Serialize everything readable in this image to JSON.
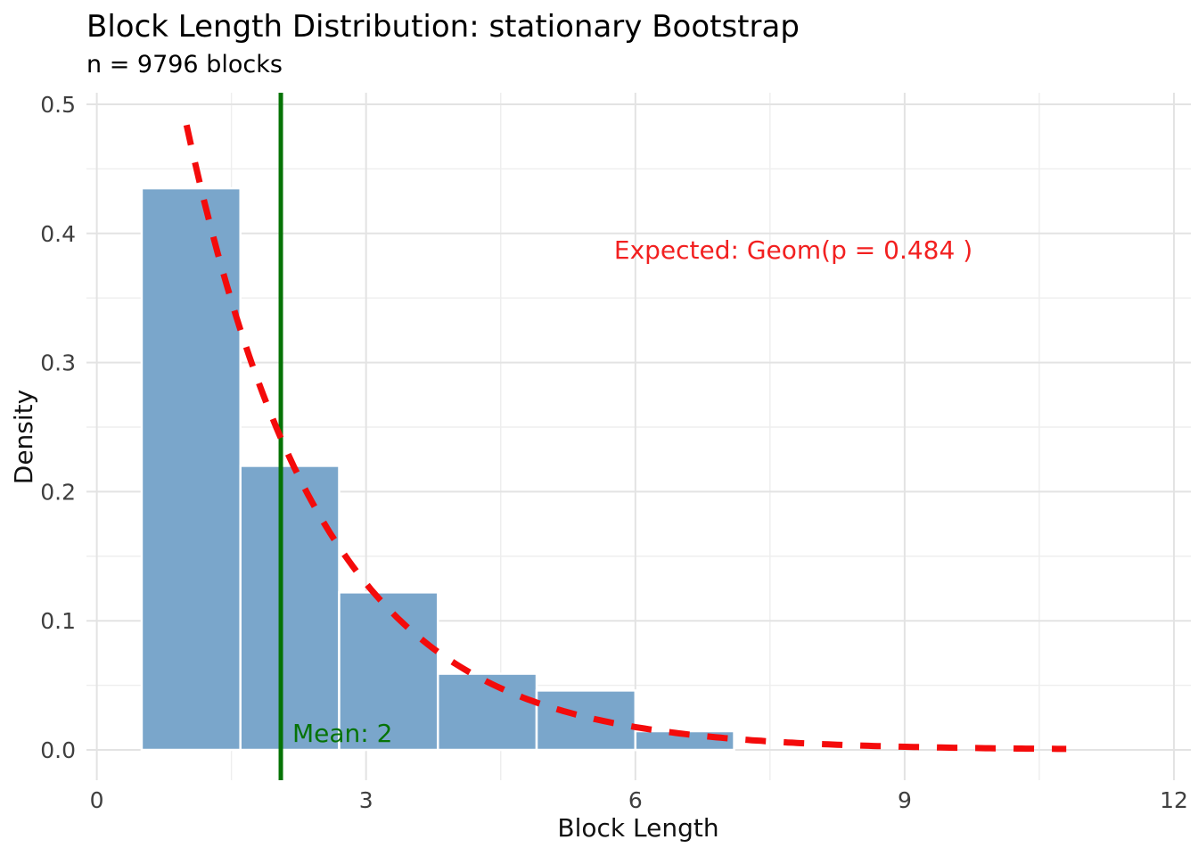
{
  "chart_data": {
    "type": "bar",
    "subtype": "histogram-with-expected-curve",
    "title": "Block Length Distribution: stationary Bootstrap",
    "subtitle": "n = 9796 blocks",
    "n_blocks": 9796,
    "xlabel": "Block Length",
    "ylabel": "Density",
    "axes": {
      "x_tick_values": [
        0,
        3,
        6,
        9,
        12
      ],
      "x_tick_labels": [
        "0",
        "3",
        "6",
        "9",
        "12"
      ],
      "x_minor_values": [
        1.5,
        4.5,
        7.5,
        10.5
      ],
      "y_tick_values": [
        0.0,
        0.1,
        0.2,
        0.3,
        0.4,
        0.5
      ],
      "y_tick_labels": [
        "0.0",
        "0.1",
        "0.2",
        "0.3",
        "0.4",
        "0.5"
      ],
      "y_minor_values": [
        0.05,
        0.15,
        0.25,
        0.35,
        0.45
      ],
      "xlim": [
        -0.12,
        12.2
      ],
      "ylim": [
        -0.024,
        0.509
      ],
      "grid": "on, major and minor, light gray on white"
    },
    "histogram": {
      "bin_edges": [
        0.5,
        1.6,
        2.7,
        3.8,
        4.9,
        6.0,
        7.1
      ],
      "densities": [
        0.435,
        0.22,
        0.122,
        0.059,
        0.046,
        0.0145
      ]
    },
    "expected_curve": {
      "distribution": "geometric",
      "p": 0.484,
      "formula": "p*(1-p)^(x-1)",
      "x_start": 1.0,
      "x_end": 10.8,
      "pmf_at_integers_x": [
        1,
        2,
        3,
        4,
        5,
        6,
        7,
        8,
        9,
        10,
        11
      ],
      "pmf_at_integers_y": [
        0.484,
        0.2497,
        0.1289,
        0.0665,
        0.0343,
        0.0177,
        0.0091,
        0.0047,
        0.0024,
        0.0013,
        0.0007
      ],
      "style": "dashed"
    },
    "mean_line": {
      "x": 2.05,
      "label": "Mean: 2"
    },
    "annotation": {
      "text": "Expected: Geom(p = 0.484 )",
      "x_data": 7.75,
      "y_data": 0.387
    },
    "colors": {
      "bar_fill": "#7aa6cb",
      "bar_stroke": "#ffffff",
      "curve_red": "#f40b0b",
      "annotation_red": "#f22020",
      "mean_green": "#067306",
      "grid_major": "#e3e3e3",
      "grid_minor": "#eeeeee",
      "tick_label": "#3f3f3f",
      "axis_title": "#111111",
      "title_color": "#000000"
    }
  }
}
